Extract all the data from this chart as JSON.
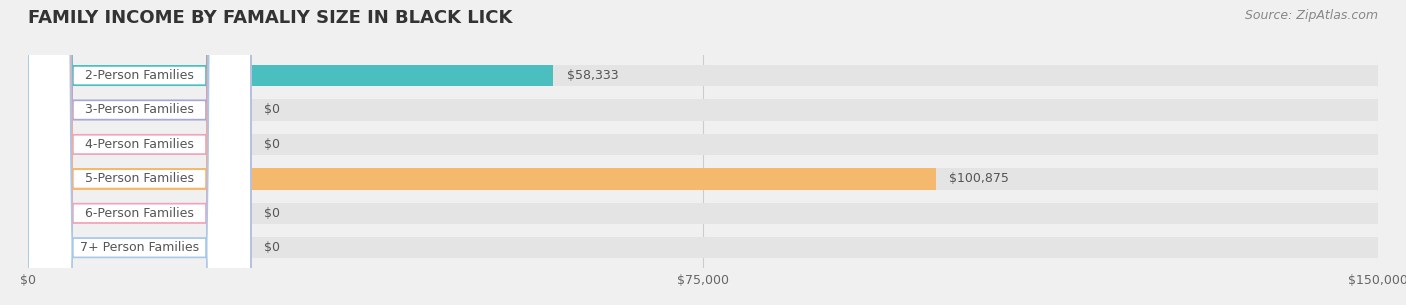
{
  "title": "FAMILY INCOME BY FAMALIY SIZE IN BLACK LICK",
  "source": "Source: ZipAtlas.com",
  "categories": [
    "2-Person Families",
    "3-Person Families",
    "4-Person Families",
    "5-Person Families",
    "6-Person Families",
    "7+ Person Families"
  ],
  "values": [
    58333,
    0,
    0,
    100875,
    0,
    0
  ],
  "bar_colors": [
    "#4bbfbf",
    "#a8a8d8",
    "#f4a0b8",
    "#f5b96e",
    "#f4a0b8",
    "#a8c8e8"
  ],
  "label_colors": [
    "#4bbfbf",
    "#a8a8d8",
    "#f4a0b8",
    "#f5b96e",
    "#f4a0b8",
    "#a8c8e8"
  ],
  "value_labels": [
    "$58,333",
    "$0",
    "$0",
    "$100,875",
    "$0",
    "$0"
  ],
  "xlim": [
    0,
    150000
  ],
  "xtick_values": [
    0,
    75000,
    150000
  ],
  "xtick_labels": [
    "$0",
    "$75,000",
    "$150,000"
  ],
  "background_color": "#f0f0f0",
  "bar_bg_color": "#e8e8e8",
  "title_fontsize": 13,
  "label_fontsize": 9,
  "value_fontsize": 9,
  "source_fontsize": 9
}
